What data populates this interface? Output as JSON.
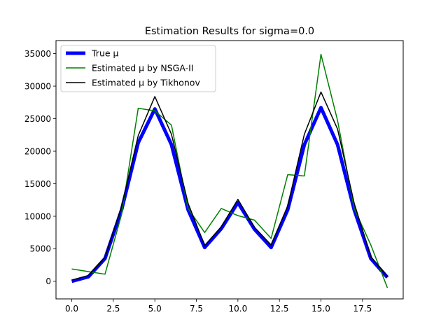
{
  "chart_data": {
    "type": "line",
    "title": "Estimation Results for sigma=0.0",
    "xlabel": "",
    "ylabel": "",
    "xlim": [
      -0.95,
      19.95
    ],
    "ylim": [
      -2700,
      37000
    ],
    "xticks": [
      0.0,
      2.5,
      5.0,
      7.5,
      10.0,
      12.5,
      15.0,
      17.5
    ],
    "xtick_labels": [
      "0.0",
      "2.5",
      "5.0",
      "7.5",
      "10.0",
      "12.5",
      "15.0",
      "17.5"
    ],
    "yticks": [
      0,
      5000,
      10000,
      15000,
      20000,
      25000,
      30000,
      35000
    ],
    "ytick_labels": [
      "0",
      "5000",
      "10000",
      "15000",
      "20000",
      "25000",
      "30000",
      "35000"
    ],
    "grid": false,
    "legend_position": "top-left",
    "x": [
      0,
      1,
      2,
      3,
      4,
      5,
      6,
      7,
      8,
      9,
      10,
      11,
      12,
      13,
      14,
      15,
      16,
      17,
      18,
      19
    ],
    "series": [
      {
        "name": "True μ",
        "color": "#0000ff",
        "values": [
          0,
          700,
          3500,
          11000,
          21300,
          26500,
          21000,
          11000,
          5200,
          8100,
          12100,
          8000,
          5200,
          11000,
          21000,
          26700,
          21000,
          11000,
          3500,
          600
        ]
      },
      {
        "name": "Estimated μ by NSGA-II",
        "color": "#008000",
        "values": [
          1900,
          1500,
          1100,
          10300,
          26600,
          26200,
          24000,
          11200,
          7500,
          11200,
          10100,
          9400,
          6600,
          16400,
          16200,
          34900,
          24700,
          11200,
          5600,
          -1000
        ]
      },
      {
        "name": "Estimated μ by Tikhonov",
        "color": "#000000",
        "values": [
          200,
          900,
          3700,
          11500,
          22400,
          28400,
          22600,
          12000,
          5500,
          8400,
          12600,
          8300,
          5600,
          11600,
          22600,
          29100,
          23400,
          12000,
          3800,
          700
        ]
      }
    ]
  }
}
